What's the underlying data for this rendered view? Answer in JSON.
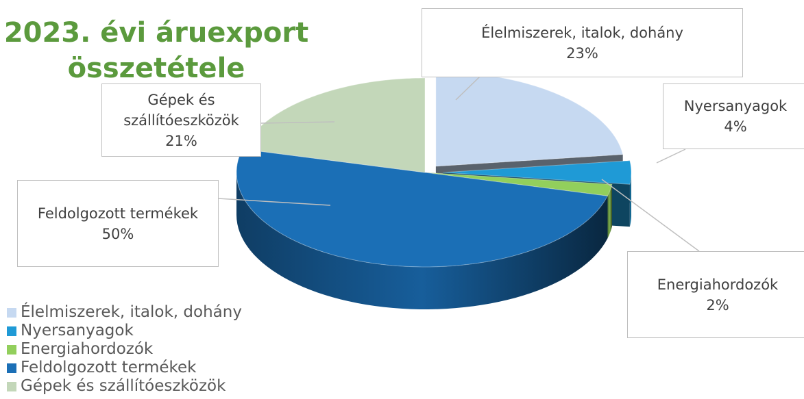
{
  "chart_data": {
    "type": "pie3d",
    "title": "2023. évi áruexport összetétele",
    "categories": [
      "Élelmiszerek, italok, dohány",
      "Nyersanyagok",
      "Energiahordozók",
      "Feldolgozott termékek",
      "Gépek és szállítóeszközök"
    ],
    "values": [
      23,
      4,
      2,
      50,
      21
    ],
    "value_labels": [
      "23%",
      "4%",
      "2%",
      "50%",
      "21%"
    ],
    "colors": [
      "#c6d9f1",
      "#1f9ad6",
      "#92cf5c",
      "#1b6fb6",
      "#c3d7b9"
    ],
    "legend": "bottom-left"
  }
}
